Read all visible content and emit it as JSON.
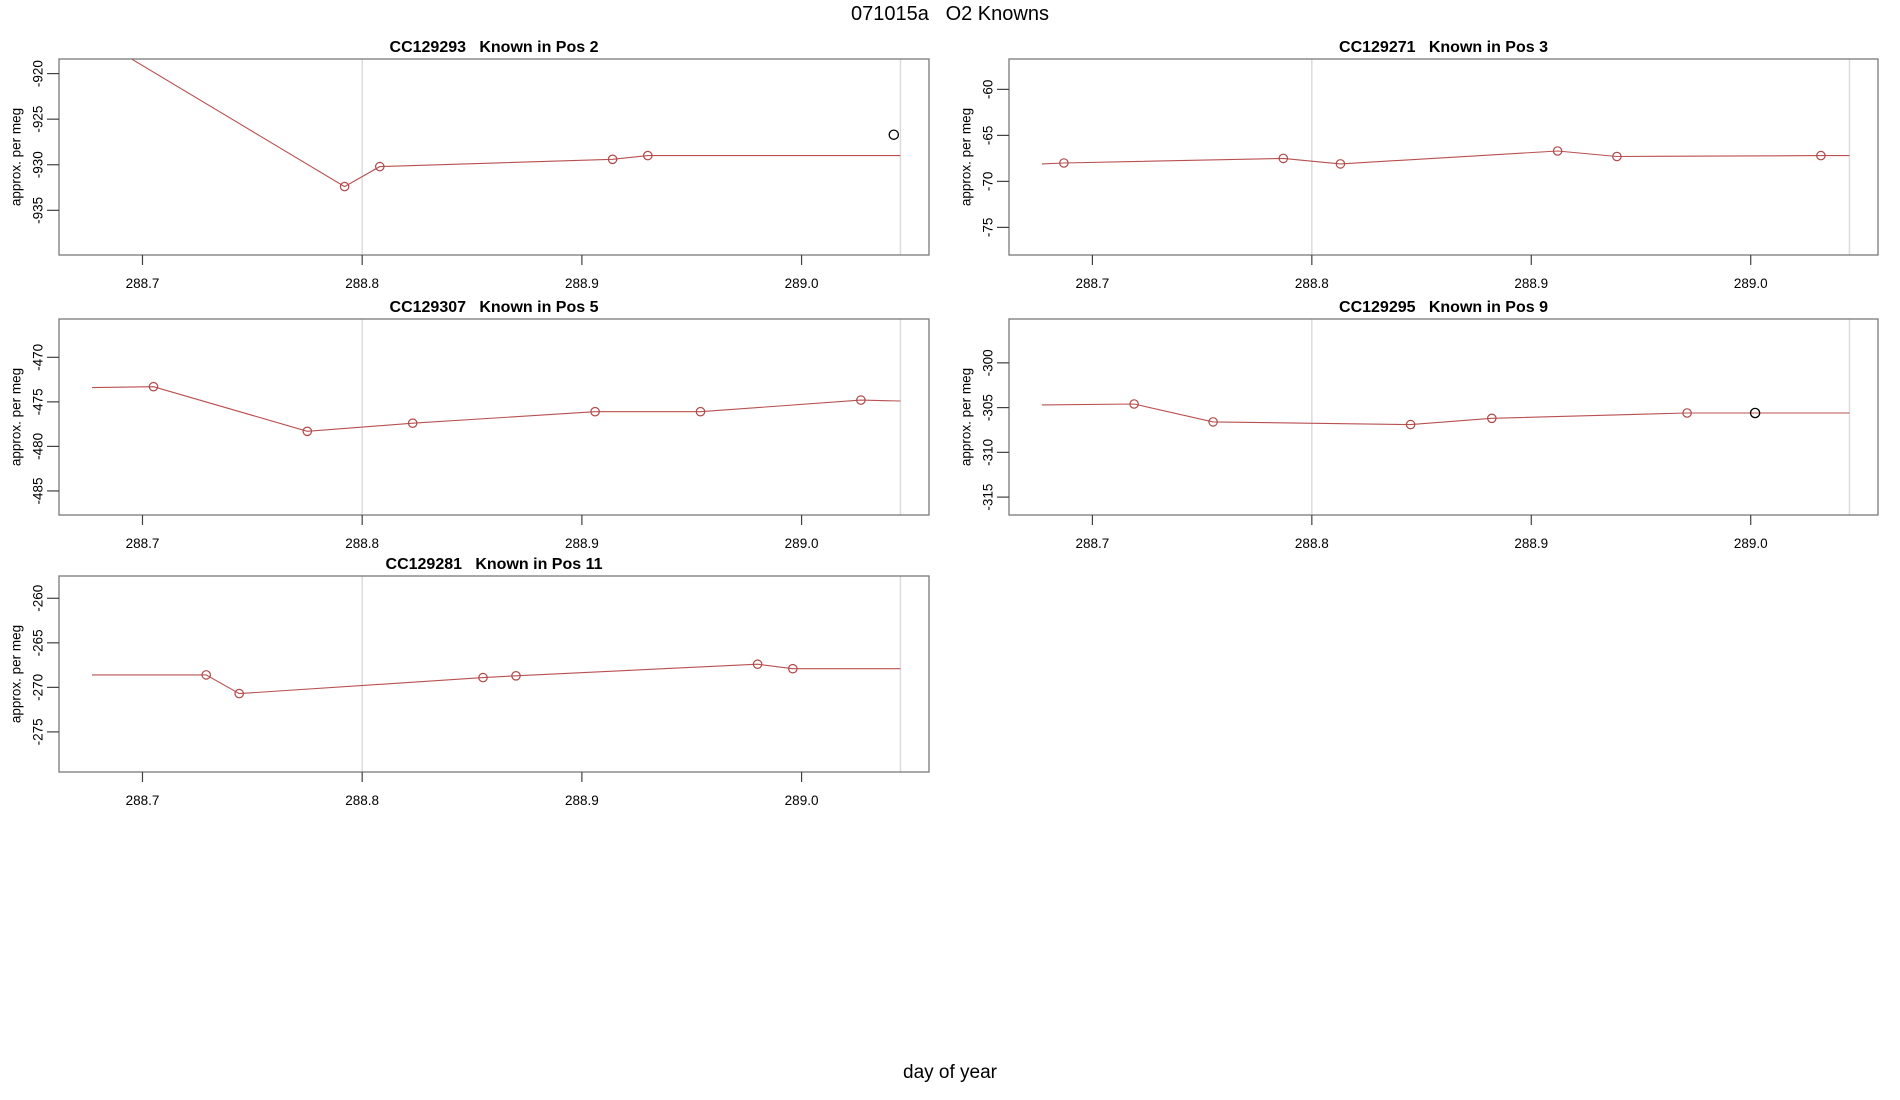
{
  "figure": {
    "title": "071015a   O2 Knowns",
    "x_axis_label": "day of year",
    "y_axis_label": "approx. per meg"
  },
  "colors": {
    "series": "#b95050",
    "marker": "#b04848",
    "special_point": "#000000",
    "guide_line": "#dcdcdc",
    "frame": "#7a7a7a",
    "tick": "#404040",
    "text": "#000000",
    "background": "#ffffff"
  },
  "chart_data": [
    {
      "type": "line",
      "title": "CC129293   Known in Pos 2",
      "sample_id": "CC129293",
      "position_label": "Known in Pos 2",
      "ylabel": "approx. per meg",
      "x_ticks": [
        "288.7",
        "288.8",
        "288.9",
        "289.0"
      ],
      "y_ticks": [
        -920,
        -925,
        -930,
        -935
      ],
      "xlim": [
        288.662,
        289.058
      ],
      "ylim": [
        -939.9,
        -918.4
      ],
      "grid": "off",
      "guide_lines_x": [
        288.8,
        289.045
      ],
      "line_path": [
        [
          288.677,
          -915.8
        ],
        [
          288.792,
          -932.4
        ],
        [
          288.808,
          -930.2
        ],
        [
          288.914,
          -929.4
        ],
        [
          288.93,
          -929.0
        ],
        [
          289.045,
          -929.0
        ]
      ],
      "points": [
        [
          288.792,
          -932.4
        ],
        [
          288.808,
          -930.2
        ],
        [
          288.914,
          -929.4
        ],
        [
          288.93,
          -929.0
        ]
      ],
      "special_points": [
        [
          289.042,
          -926.7
        ]
      ]
    },
    {
      "type": "line",
      "title": "CC129271   Known in Pos 3",
      "sample_id": "CC129271",
      "position_label": "Known in Pos 3",
      "ylabel": "approx. per meg",
      "x_ticks": [
        "288.7",
        "288.8",
        "288.9",
        "289.0"
      ],
      "y_ticks": [
        -60,
        -65,
        -70,
        -75
      ],
      "xlim": [
        288.662,
        289.058
      ],
      "ylim": [
        -78.0,
        -56.7
      ],
      "grid": "off",
      "guide_lines_x": [
        288.8,
        289.045
      ],
      "line_path": [
        [
          288.677,
          -68.1
        ],
        [
          288.687,
          -68.0
        ],
        [
          288.787,
          -67.5
        ],
        [
          288.813,
          -68.1
        ],
        [
          288.912,
          -66.7
        ],
        [
          288.939,
          -67.3
        ],
        [
          289.032,
          -67.2
        ],
        [
          289.045,
          -67.2
        ]
      ],
      "points": [
        [
          288.687,
          -68.0
        ],
        [
          288.787,
          -67.5
        ],
        [
          288.813,
          -68.1
        ],
        [
          288.912,
          -66.7
        ],
        [
          288.939,
          -67.3
        ],
        [
          289.032,
          -67.2
        ]
      ],
      "special_points": []
    },
    {
      "type": "line",
      "title": "CC129307   Known in Pos 5",
      "sample_id": "CC129307",
      "position_label": "Known in Pos 5",
      "ylabel": "approx. per meg",
      "x_ticks": [
        "288.7",
        "288.8",
        "288.9",
        "289.0"
      ],
      "y_ticks": [
        -470,
        -475,
        -480,
        -485
      ],
      "xlim": [
        288.662,
        289.058
      ],
      "ylim": [
        -487.7,
        -465.7
      ],
      "grid": "off",
      "guide_lines_x": [
        288.8,
        289.045
      ],
      "line_path": [
        [
          288.677,
          -473.4
        ],
        [
          288.705,
          -473.3
        ],
        [
          288.775,
          -478.3
        ],
        [
          288.823,
          -477.4
        ],
        [
          288.906,
          -476.1
        ],
        [
          288.954,
          -476.1
        ],
        [
          289.027,
          -474.8
        ],
        [
          289.045,
          -474.9
        ]
      ],
      "points": [
        [
          288.705,
          -473.3
        ],
        [
          288.775,
          -478.3
        ],
        [
          288.823,
          -477.4
        ],
        [
          288.906,
          -476.1
        ],
        [
          288.954,
          -476.1
        ],
        [
          289.027,
          -474.8
        ]
      ],
      "special_points": []
    },
    {
      "type": "line",
      "title": "CC129295   Known in Pos 9",
      "sample_id": "CC129295",
      "position_label": "Known in Pos 9",
      "ylabel": "approx. per meg",
      "x_ticks": [
        "288.7",
        "288.8",
        "288.9",
        "289.0"
      ],
      "y_ticks": [
        -300,
        -305,
        -310,
        -315
      ],
      "xlim": [
        288.662,
        289.058
      ],
      "ylim": [
        -317.0,
        -295.1
      ],
      "grid": "off",
      "guide_lines_x": [
        288.8,
        289.045
      ],
      "line_path": [
        [
          288.677,
          -304.7
        ],
        [
          288.719,
          -304.6
        ],
        [
          288.755,
          -306.6
        ],
        [
          288.845,
          -306.9
        ],
        [
          288.882,
          -306.2
        ],
        [
          288.971,
          -305.6
        ],
        [
          289.045,
          -305.6
        ]
      ],
      "points": [
        [
          288.719,
          -304.6
        ],
        [
          288.755,
          -306.6
        ],
        [
          288.845,
          -306.9
        ],
        [
          288.882,
          -306.2
        ],
        [
          288.971,
          -305.6
        ]
      ],
      "special_points": [
        [
          289.002,
          -305.6
        ]
      ]
    },
    {
      "type": "line",
      "title": "CC129281   Known in Pos 11",
      "sample_id": "CC129281",
      "position_label": "Known in Pos 11",
      "ylabel": "approx. per meg",
      "x_ticks": [
        "288.7",
        "288.8",
        "288.9",
        "289.0"
      ],
      "y_ticks": [
        -260,
        -265,
        -270,
        -275
      ],
      "xlim": [
        288.662,
        289.058
      ],
      "ylim": [
        -279.5,
        -257.5
      ],
      "grid": "off",
      "guide_lines_x": [
        288.8,
        289.045
      ],
      "line_path": [
        [
          288.677,
          -268.6
        ],
        [
          288.729,
          -268.6
        ],
        [
          288.744,
          -270.7
        ],
        [
          288.855,
          -268.9
        ],
        [
          288.87,
          -268.7
        ],
        [
          288.98,
          -267.4
        ],
        [
          288.996,
          -267.9
        ],
        [
          289.045,
          -267.9
        ]
      ],
      "points": [
        [
          288.729,
          -268.6
        ],
        [
          288.744,
          -270.7
        ],
        [
          288.855,
          -268.9
        ],
        [
          288.87,
          -268.7
        ],
        [
          288.98,
          -267.4
        ],
        [
          288.996,
          -267.9
        ]
      ],
      "special_points": []
    }
  ]
}
